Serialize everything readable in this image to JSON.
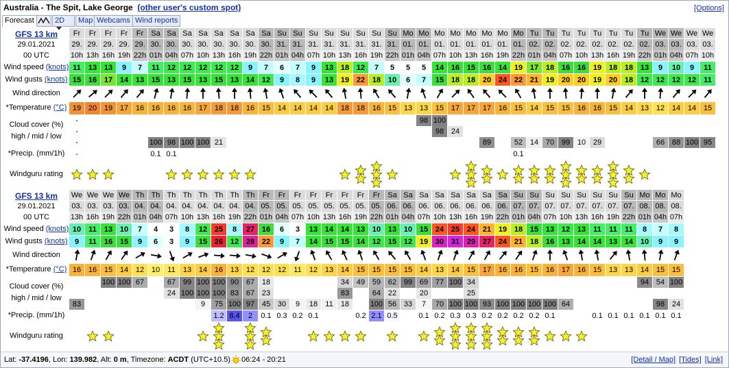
{
  "header": {
    "title": "Australia - The Spit, Lake George",
    "link": "(other user's custom spot)",
    "options": "[Options]"
  },
  "tabs": {
    "forecast": "Forecast",
    "mode": "2D",
    "map": "Map",
    "webcams": "Webcams",
    "reports": "Wind reports"
  },
  "labels": {
    "wind_speed": "Wind speed",
    "knots": "(knots)",
    "wind_gusts": "Wind gusts",
    "wind_direction": "Wind direction",
    "temperature": "*Temperature",
    "celsius": "(°C)",
    "cloud_cover": "Cloud cover (%)",
    "cloud_levels": "high / mid / low",
    "precip": "*Precip. (mm/1h)",
    "rating": "Windguru rating"
  },
  "blocks": [
    {
      "model": "GFS 13 km",
      "date": "29.01.2021",
      "run": "00 UTC",
      "days": [
        "Fr",
        "Fr",
        "Fr",
        "Fr",
        "Fr",
        "Sa",
        "Sa",
        "Sa",
        "Sa",
        "Sa",
        "Sa",
        "Sa",
        "Sa",
        "Su",
        "Su",
        "Su",
        "Su",
        "Su",
        "Su",
        "Su",
        "Su",
        "Mo",
        "Mo",
        "Mo",
        "Mo",
        "Mo",
        "Mo",
        "Mo",
        "Mo",
        "Tu",
        "Tu",
        "Tu",
        "Tu",
        "Tu",
        "Tu",
        "Tu",
        "Tu",
        "We",
        "We",
        "We",
        "We"
      ],
      "dates": [
        "29.",
        "29.",
        "29.",
        "29.",
        "29.",
        "30.",
        "30.",
        "30.",
        "30.",
        "30.",
        "30.",
        "30.",
        "30.",
        "31.",
        "31.",
        "31.",
        "31.",
        "31.",
        "31.",
        "31.",
        "31.",
        "01.",
        "01.",
        "01.",
        "01.",
        "01.",
        "01.",
        "01.",
        "01.",
        "02.",
        "02.",
        "02.",
        "02.",
        "02.",
        "02.",
        "02.",
        "02.",
        "03.",
        "03.",
        "03.",
        "03."
      ],
      "hours": [
        "10h",
        "13h",
        "16h",
        "19h",
        "22h",
        "01h",
        "04h",
        "07h",
        "10h",
        "13h",
        "16h",
        "19h",
        "22h",
        "01h",
        "04h",
        "07h",
        "10h",
        "13h",
        "16h",
        "19h",
        "22h",
        "01h",
        "04h",
        "07h",
        "10h",
        "13h",
        "16h",
        "19h",
        "22h",
        "01h",
        "04h",
        "07h",
        "10h",
        "13h",
        "16h",
        "19h",
        "22h",
        "01h",
        "04h",
        "07h",
        "10h"
      ],
      "wind_speed": [
        11,
        13,
        13,
        9,
        7,
        11,
        12,
        12,
        12,
        12,
        12,
        9,
        7,
        6,
        7,
        9,
        13,
        18,
        12,
        7,
        5,
        5,
        5,
        14,
        16,
        15,
        16,
        14,
        19,
        17,
        18,
        16,
        16,
        19,
        18,
        18,
        13,
        9,
        10,
        9,
        11
      ],
      "wind_gusts": [
        15,
        16,
        17,
        14,
        13,
        15,
        13,
        15,
        13,
        15,
        13,
        14,
        12,
        9,
        8,
        9,
        13,
        19,
        22,
        18,
        10,
        6,
        7,
        15,
        18,
        18,
        20,
        24,
        22,
        21,
        19,
        20,
        20,
        19,
        20,
        18,
        12,
        12,
        12,
        12,
        11
      ],
      "wind_direction": [
        45,
        50,
        45,
        40,
        40,
        15,
        10,
        5,
        0,
        -5,
        0,
        -5,
        -10,
        -20,
        -40,
        -45,
        -40,
        -10,
        -5,
        -30,
        -40,
        10,
        -20,
        30,
        45,
        -35,
        -40,
        -45,
        -30,
        -10,
        0,
        -5,
        5,
        0,
        10,
        40,
        0,
        5,
        40,
        45,
        40
      ],
      "temperature": [
        19,
        20,
        19,
        17,
        16,
        16,
        16,
        16,
        17,
        18,
        18,
        16,
        15,
        14,
        14,
        14,
        14,
        18,
        18,
        16,
        15,
        13,
        13,
        15,
        17,
        17,
        17,
        16,
        15,
        14,
        15,
        15,
        16,
        16,
        15,
        14,
        13,
        12,
        14,
        14,
        15
      ],
      "cloud_high": [
        "-",
        null,
        null,
        null,
        null,
        null,
        null,
        null,
        null,
        null,
        null,
        null,
        null,
        null,
        null,
        null,
        null,
        null,
        null,
        null,
        null,
        null,
        98,
        100,
        null,
        null,
        null,
        null,
        null,
        null,
        null,
        null,
        null,
        null,
        null,
        null,
        null,
        null,
        null,
        null,
        null
      ],
      "cloud_mid": [
        "-",
        null,
        null,
        null,
        null,
        null,
        null,
        null,
        null,
        null,
        null,
        null,
        null,
        null,
        null,
        null,
        null,
        null,
        null,
        null,
        null,
        null,
        null,
        98,
        24,
        null,
        null,
        null,
        null,
        null,
        null,
        null,
        null,
        null,
        null,
        null,
        null,
        null,
        null,
        null,
        null
      ],
      "cloud_low": [
        "-",
        null,
        null,
        null,
        null,
        100,
        98,
        100,
        100,
        21,
        null,
        null,
        null,
        null,
        null,
        null,
        null,
        null,
        null,
        null,
        null,
        null,
        null,
        null,
        null,
        null,
        89,
        null,
        52,
        14,
        70,
        99,
        10,
        29,
        null,
        null,
        null,
        66,
        88,
        100,
        95
      ],
      "precip": [
        "-",
        null,
        null,
        null,
        null,
        0.1,
        0.1,
        null,
        null,
        null,
        null,
        null,
        null,
        null,
        null,
        null,
        null,
        null,
        null,
        null,
        null,
        null,
        null,
        null,
        null,
        null,
        null,
        null,
        0.1,
        null,
        null,
        null,
        null,
        null,
        null,
        null,
        null,
        null,
        null,
        null,
        null
      ],
      "rating": [
        1,
        1,
        1,
        0,
        0,
        0,
        1,
        1,
        1,
        1,
        1,
        1,
        0,
        0,
        0,
        0,
        0,
        1,
        2,
        3,
        1,
        0,
        0,
        0,
        1,
        3,
        2,
        1,
        2,
        2,
        2,
        3,
        2,
        2,
        3,
        2,
        1,
        0,
        0,
        0,
        0
      ]
    },
    {
      "model": "GFS 13 km",
      "date": "29.01.2021",
      "run": "00 UTC",
      "days": [
        "We",
        "We",
        "We",
        "We",
        "Th",
        "Th",
        "Th",
        "Th",
        "Th",
        "Th",
        "Th",
        "Th",
        "Fr",
        "Fr",
        "Fr",
        "Fr",
        "Fr",
        "Fr",
        "Fr",
        "Fr",
        "Sa",
        "Sa",
        "Sa",
        "Sa",
        "Sa",
        "Sa",
        "Sa",
        "Sa",
        "Su",
        "Su",
        "Su",
        "Su",
        "Su",
        "Su",
        "Su",
        "Su",
        "Mo",
        "Mo",
        "Mo"
      ],
      "dates": [
        "03.",
        "03.",
        "03.",
        "03.",
        "04.",
        "04.",
        "04.",
        "04.",
        "04.",
        "04.",
        "04.",
        "04.",
        "05.",
        "05.",
        "05.",
        "05.",
        "05.",
        "05.",
        "05.",
        "05.",
        "06.",
        "06.",
        "06.",
        "06.",
        "06.",
        "06.",
        "06.",
        "06.",
        "07.",
        "07.",
        "07.",
        "07.",
        "07.",
        "07.",
        "07.",
        "07.",
        "08.",
        "08.",
        "08."
      ],
      "hours": [
        "13h",
        "16h",
        "19h",
        "22h",
        "01h",
        "04h",
        "07h",
        "10h",
        "13h",
        "16h",
        "19h",
        "22h",
        "01h",
        "04h",
        "07h",
        "10h",
        "13h",
        "16h",
        "19h",
        "22h",
        "01h",
        "04h",
        "07h",
        "10h",
        "13h",
        "16h",
        "19h",
        "22h",
        "01h",
        "04h",
        "07h",
        "10h",
        "13h",
        "16h",
        "19h",
        "22h",
        "01h",
        "04h",
        "07h"
      ],
      "wind_speed": [
        10,
        11,
        13,
        10,
        7,
        4,
        3,
        8,
        12,
        25,
        8,
        27,
        16,
        6,
        3,
        13,
        14,
        14,
        13,
        10,
        13,
        10,
        15,
        24,
        25,
        24,
        21,
        19,
        18,
        15,
        13,
        12,
        13,
        11,
        11,
        11,
        8,
        7,
        8
      ],
      "wind_gusts": [
        9,
        11,
        16,
        15,
        9,
        6,
        3,
        9,
        15,
        26,
        12,
        28,
        22,
        9,
        7,
        14,
        15,
        15,
        14,
        12,
        15,
        12,
        19,
        30,
        31,
        29,
        27,
        24,
        21,
        18,
        16,
        13,
        14,
        14,
        13,
        14,
        10,
        9,
        9
      ],
      "wind_direction": [
        10,
        20,
        30,
        35,
        60,
        100,
        160,
        60,
        70,
        95,
        95,
        100,
        110,
        60,
        -160,
        -20,
        -30,
        -25,
        -20,
        -30,
        -40,
        -30,
        -20,
        20,
        20,
        30,
        30,
        40,
        35,
        20,
        0,
        -20,
        -10,
        -10,
        40,
        -10,
        -5,
        10,
        20
      ],
      "temperature": [
        16,
        16,
        15,
        14,
        12,
        10,
        11,
        13,
        14,
        16,
        13,
        12,
        12,
        12,
        11,
        12,
        13,
        14,
        15,
        15,
        15,
        15,
        14,
        13,
        14,
        15,
        17,
        16,
        16,
        15,
        16,
        17,
        16,
        15,
        13,
        13,
        14,
        15,
        15
      ],
      "cloud_high": [
        null,
        null,
        100,
        100,
        67,
        null,
        67,
        99,
        100,
        100,
        90,
        67,
        18,
        null,
        null,
        null,
        null,
        34,
        49,
        59,
        62,
        99,
        69,
        77,
        100,
        34,
        null,
        null,
        null,
        null,
        null,
        null,
        null,
        null,
        null,
        null,
        94,
        54,
        100
      ],
      "cloud_mid": [
        null,
        null,
        null,
        null,
        null,
        null,
        24,
        100,
        100,
        100,
        83,
        67,
        23,
        null,
        null,
        null,
        null,
        83,
        null,
        64,
        22,
        null,
        20,
        null,
        null,
        25,
        null,
        null,
        null,
        null,
        null,
        null,
        null,
        null,
        null,
        null,
        null,
        null,
        null
      ],
      "cloud_low": [
        83,
        null,
        null,
        null,
        null,
        null,
        null,
        null,
        9,
        75,
        100,
        97,
        45,
        30,
        9,
        18,
        11,
        18,
        null,
        100,
        56,
        33,
        7,
        70,
        100,
        100,
        93,
        100,
        100,
        100,
        100,
        64,
        null,
        null,
        null,
        null,
        null,
        98,
        24
      ],
      "precip": [
        null,
        null,
        null,
        null,
        null,
        null,
        null,
        null,
        null,
        1.2,
        8.4,
        2,
        0.1,
        0.3,
        0.2,
        0.1,
        null,
        null,
        0.2,
        2.1,
        0.5,
        null,
        0.1,
        0.2,
        0.3,
        0.3,
        0.2,
        0.2,
        0.2,
        0.2,
        0.1,
        null,
        null,
        0.1,
        0.1,
        0.1,
        0.1,
        0.1,
        0.1
      ],
      "rating": [
        0,
        1,
        1,
        0,
        0,
        0,
        0,
        0,
        1,
        3,
        0,
        3,
        2,
        0,
        0,
        1,
        1,
        1,
        1,
        0,
        1,
        0,
        1,
        2,
        3,
        3,
        3,
        2,
        2,
        2,
        1,
        1,
        1,
        0,
        0,
        0,
        0,
        0,
        0
      ]
    }
  ],
  "footer": {
    "lat_label": "Lat:",
    "lat": "-37.4196",
    "lon_label": ", Lon:",
    "lon": "139.982",
    "alt_label": ", Alt:",
    "alt": "0 m",
    "tz_label": ", Timezone:",
    "tz": "ACDT",
    "utc": "(UTC+10.5)",
    "sun": "06:24 - 20:21",
    "detail": "[Detail / Map]",
    "tides": "[Tides]",
    "link": "[Link]"
  }
}
